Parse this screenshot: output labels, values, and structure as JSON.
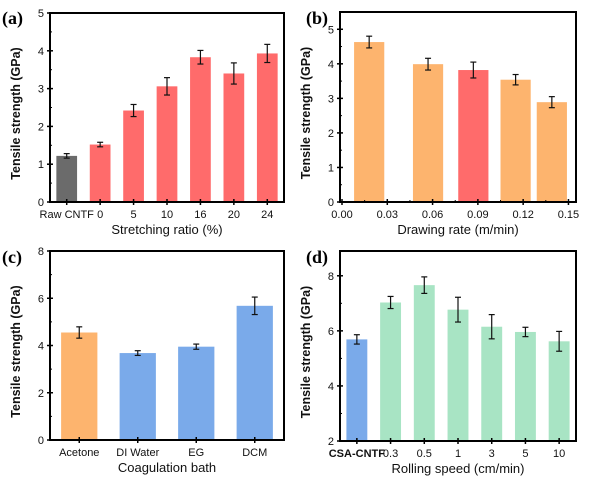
{
  "chart_data": [
    {
      "id": "a",
      "panel_label": "(a)",
      "type": "bar",
      "title": "",
      "xlabel": "Stretching ratio (%)",
      "ylabel": "Tensile strength (GPa)",
      "ylim": [
        0,
        5
      ],
      "yticks": [
        0,
        1,
        2,
        3,
        4,
        5
      ],
      "x_kind": "categorical",
      "categories": [
        "Raw CNTF",
        "0",
        "5",
        "10",
        "16",
        "20",
        "24"
      ],
      "values": [
        1.22,
        1.52,
        2.42,
        3.06,
        3.83,
        3.4,
        3.93
      ],
      "errors": [
        0.06,
        0.06,
        0.16,
        0.23,
        0.18,
        0.28,
        0.24
      ],
      "colors": [
        "#6b6b6b",
        "#ff6b6b",
        "#ff6b6b",
        "#ff6b6b",
        "#ff6b6b",
        "#ff6b6b",
        "#ff6b6b"
      ],
      "grid": false
    },
    {
      "id": "b",
      "panel_label": "(b)",
      "type": "bar",
      "title": "",
      "xlabel": "Drawing rate (m/min)",
      "ylabel": "Tensile strength (GPa)",
      "ylim": [
        0,
        5.5
      ],
      "yticks": [
        0,
        1,
        2,
        3,
        4,
        5
      ],
      "x_kind": "numeric",
      "xlim": [
        0.0,
        0.155
      ],
      "xticks": [
        0.0,
        0.03,
        0.06,
        0.09,
        0.12,
        0.15
      ],
      "xtick_labels": [
        "0.00",
        "0.03",
        "0.06",
        "0.09",
        "0.12",
        "0.15"
      ],
      "x": [
        0.018,
        0.057,
        0.087,
        0.115,
        0.139
      ],
      "bar_width": 0.02,
      "values": [
        4.63,
        3.99,
        3.82,
        3.54,
        2.89
      ],
      "errors": [
        0.17,
        0.17,
        0.23,
        0.15,
        0.16
      ],
      "colors": [
        "#fdb46e",
        "#fdb46e",
        "#ff6b6b",
        "#fdb46e",
        "#fdb46e"
      ],
      "grid": false
    },
    {
      "id": "c",
      "panel_label": "(c)",
      "type": "bar",
      "title": "",
      "xlabel": "Coagulation bath",
      "ylabel": "Tensile strength (GPa)",
      "ylim": [
        0,
        8
      ],
      "yticks": [
        0,
        2,
        4,
        6,
        8
      ],
      "x_kind": "categorical",
      "categories": [
        "Acetone",
        "DI Water",
        "EG",
        "DCM"
      ],
      "values": [
        4.55,
        3.68,
        3.95,
        5.68
      ],
      "errors": [
        0.24,
        0.1,
        0.11,
        0.37
      ],
      "colors": [
        "#fdb46e",
        "#7aaaea",
        "#7aaaea",
        "#7aaaea"
      ],
      "grid": false
    },
    {
      "id": "d",
      "panel_label": "(d)",
      "type": "bar",
      "title": "",
      "xlabel": "Rolling speed (cm/min)",
      "ylabel": "Tensile strength (GPa)",
      "ylim": [
        2,
        8.9
      ],
      "yticks": [
        2,
        4,
        6,
        8
      ],
      "x_kind": "categorical",
      "categories": [
        "CSA-CNTF",
        "0.3",
        "0.5",
        "1",
        "3",
        "5",
        "10"
      ],
      "values": [
        5.69,
        7.03,
        7.66,
        6.77,
        6.15,
        5.96,
        5.62
      ],
      "errors": [
        0.17,
        0.22,
        0.3,
        0.45,
        0.44,
        0.17,
        0.36
      ],
      "colors": [
        "#7aaaea",
        "#a8e4c4",
        "#a8e4c4",
        "#a8e4c4",
        "#a8e4c4",
        "#a8e4c4",
        "#a8e4c4"
      ],
      "grid": false
    }
  ]
}
